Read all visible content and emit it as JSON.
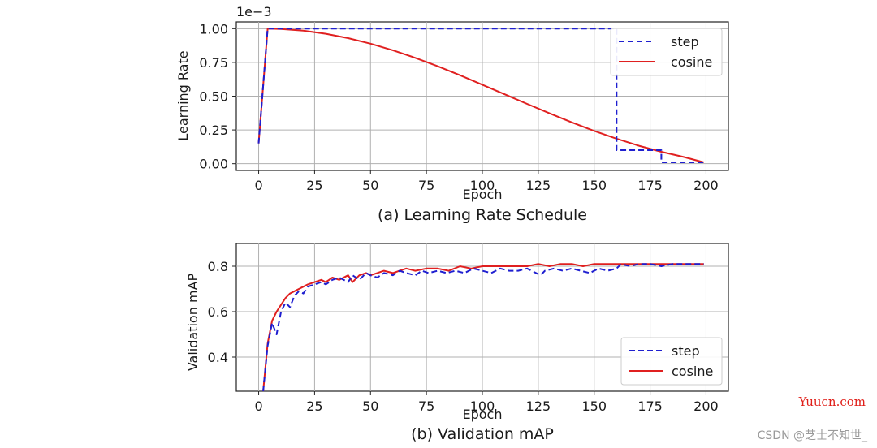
{
  "chart_data": [
    {
      "type": "line",
      "caption": "(a) Learning Rate Schedule",
      "xlabel": "Epoch",
      "ylabel": "Learning Rate",
      "scale_label": "1e−3",
      "xlim": [
        -10,
        210
      ],
      "ylim": [
        -0.05,
        1.05
      ],
      "xticks": [
        0,
        25,
        50,
        75,
        100,
        125,
        150,
        175,
        200
      ],
      "yticks": [
        0.0,
        0.25,
        0.5,
        0.75,
        1.0
      ],
      "ytick_labels": [
        "0.00",
        "0.25",
        "0.50",
        "0.75",
        "1.00"
      ],
      "grid": true,
      "legend_position": "top-right",
      "series": [
        {
          "name": "step",
          "color": "#1f1fd0",
          "style": "dashed",
          "x": [
            0,
            4,
            160,
            160,
            180,
            180,
            199
          ],
          "y": [
            0.15,
            1.0,
            1.0,
            0.1,
            0.1,
            0.01,
            0.01
          ]
        },
        {
          "name": "cosine",
          "color": "#e02020",
          "style": "solid",
          "x": [
            0,
            4,
            10,
            20,
            30,
            40,
            50,
            60,
            70,
            80,
            90,
            100,
            110,
            120,
            130,
            140,
            150,
            160,
            170,
            180,
            190,
            199
          ],
          "y": [
            0.15,
            1.0,
            0.998,
            0.985,
            0.962,
            0.93,
            0.889,
            0.84,
            0.784,
            0.722,
            0.655,
            0.585,
            0.514,
            0.443,
            0.373,
            0.306,
            0.243,
            0.185,
            0.133,
            0.088,
            0.05,
            0.01
          ]
        }
      ]
    },
    {
      "type": "line",
      "caption": "(b) Validation mAP",
      "xlabel": "Epoch",
      "ylabel": "Validation mAP",
      "xlim": [
        -10,
        210
      ],
      "ylim": [
        0.25,
        0.9
      ],
      "xticks": [
        0,
        25,
        50,
        75,
        100,
        125,
        150,
        175,
        200
      ],
      "yticks": [
        0.4,
        0.6,
        0.8
      ],
      "ytick_labels": [
        "0.4",
        "0.6",
        "0.8"
      ],
      "grid": true,
      "legend_position": "lower-right",
      "series": [
        {
          "name": "step",
          "color": "#1f1fd0",
          "style": "dashed",
          "x": [
            2,
            4,
            6,
            8,
            10,
            12,
            14,
            16,
            18,
            20,
            22,
            25,
            28,
            30,
            33,
            36,
            40,
            42,
            45,
            48,
            50,
            53,
            56,
            60,
            63,
            66,
            70,
            73,
            76,
            80,
            84,
            88,
            92,
            96,
            100,
            104,
            108,
            112,
            116,
            120,
            124,
            126,
            128,
            132,
            136,
            140,
            144,
            148,
            152,
            156,
            160,
            162,
            166,
            170,
            175,
            180,
            185,
            190,
            195,
            199
          ],
          "y": [
            0.25,
            0.45,
            0.55,
            0.5,
            0.6,
            0.64,
            0.62,
            0.67,
            0.69,
            0.68,
            0.71,
            0.72,
            0.73,
            0.72,
            0.74,
            0.75,
            0.73,
            0.76,
            0.74,
            0.77,
            0.76,
            0.75,
            0.77,
            0.76,
            0.78,
            0.77,
            0.76,
            0.78,
            0.77,
            0.78,
            0.77,
            0.78,
            0.77,
            0.79,
            0.78,
            0.77,
            0.79,
            0.78,
            0.78,
            0.79,
            0.77,
            0.76,
            0.78,
            0.79,
            0.78,
            0.79,
            0.78,
            0.77,
            0.79,
            0.78,
            0.79,
            0.81,
            0.8,
            0.81,
            0.81,
            0.8,
            0.81,
            0.81,
            0.81,
            0.81
          ]
        },
        {
          "name": "cosine",
          "color": "#e02020",
          "style": "solid",
          "x": [
            2,
            4,
            6,
            8,
            10,
            12,
            14,
            16,
            18,
            20,
            22,
            25,
            28,
            30,
            33,
            36,
            40,
            42,
            45,
            48,
            50,
            53,
            56,
            60,
            63,
            66,
            70,
            75,
            80,
            85,
            90,
            95,
            100,
            105,
            110,
            115,
            120,
            125,
            130,
            135,
            140,
            145,
            150,
            155,
            160,
            165,
            170,
            175,
            180,
            185,
            190,
            195,
            199
          ],
          "y": [
            0.25,
            0.46,
            0.56,
            0.6,
            0.63,
            0.66,
            0.68,
            0.69,
            0.7,
            0.71,
            0.72,
            0.73,
            0.74,
            0.73,
            0.75,
            0.74,
            0.76,
            0.73,
            0.76,
            0.77,
            0.76,
            0.77,
            0.78,
            0.77,
            0.78,
            0.79,
            0.78,
            0.79,
            0.79,
            0.78,
            0.8,
            0.79,
            0.8,
            0.8,
            0.8,
            0.8,
            0.8,
            0.81,
            0.8,
            0.81,
            0.81,
            0.8,
            0.81,
            0.81,
            0.81,
            0.81,
            0.81,
            0.81,
            0.81,
            0.81,
            0.81,
            0.81,
            0.81
          ]
        }
      ]
    }
  ],
  "watermarks": {
    "site": "Yuucn.com",
    "csdn": "CSDN @芝士不知世_"
  }
}
